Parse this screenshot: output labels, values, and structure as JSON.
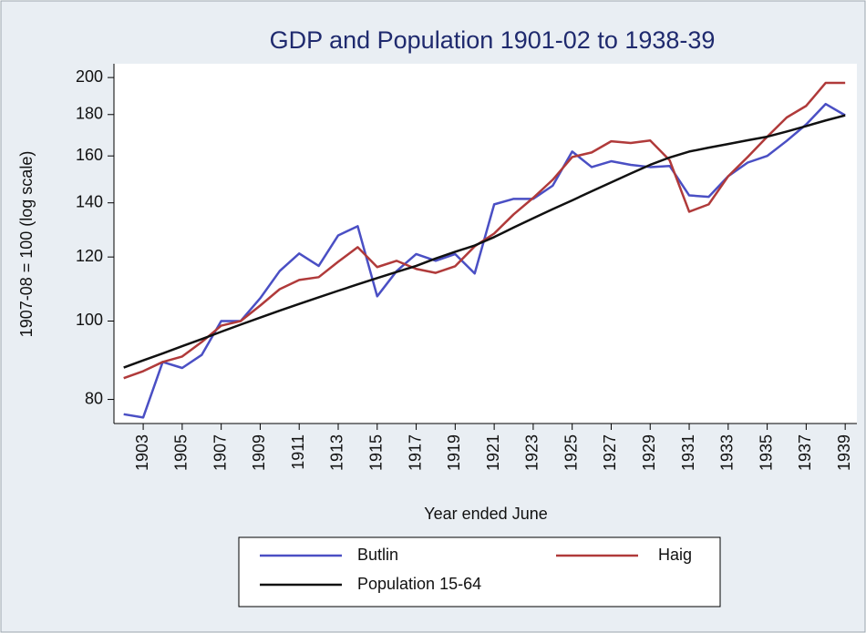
{
  "chart_data": {
    "type": "line",
    "title": "GDP and Population 1901-02 to 1938-39",
    "xlabel": "Year ended June",
    "ylabel": "1907-08 = 100 (log scale)",
    "log_y": true,
    "grid": false,
    "x": [
      1902,
      1903,
      1904,
      1905,
      1906,
      1907,
      1908,
      1909,
      1910,
      1911,
      1912,
      1913,
      1914,
      1915,
      1916,
      1917,
      1918,
      1919,
      1920,
      1921,
      1922,
      1923,
      1924,
      1925,
      1926,
      1927,
      1928,
      1929,
      1930,
      1931,
      1932,
      1933,
      1934,
      1935,
      1936,
      1937,
      1938,
      1939
    ],
    "xlim": [
      1901.5,
      1939.6
    ],
    "xticks": [
      1903,
      1905,
      1907,
      1909,
      1911,
      1913,
      1915,
      1917,
      1919,
      1921,
      1923,
      1925,
      1927,
      1929,
      1931,
      1933,
      1935,
      1937,
      1939
    ],
    "ylim": [
      74.7,
      208
    ],
    "yticks": [
      80,
      100,
      120,
      140,
      160,
      180,
      200
    ],
    "legend": "bottom",
    "series": [
      {
        "name": "Butlin",
        "color": "#4a4fc4",
        "values": [
          76.7,
          76,
          89,
          87.5,
          90.8,
          100,
          100,
          106.7,
          115.3,
          121.2,
          117,
          127.6,
          131,
          107.3,
          115.3,
          121,
          118.7,
          121,
          114.5,
          139.4,
          141.6,
          141.6,
          147,
          162,
          155,
          157.6,
          156,
          155,
          155.5,
          143,
          142.4,
          151,
          157,
          160,
          167,
          175,
          185.5,
          179.6
        ]
      },
      {
        "name": "Haig",
        "color": "#b03a3a",
        "values": [
          85,
          86.7,
          89,
          90.4,
          94.2,
          98.7,
          100,
          104.5,
          109.5,
          112.4,
          113.3,
          118.4,
          123.4,
          116.6,
          118.7,
          116,
          114.7,
          116.9,
          123.7,
          128.3,
          135.5,
          142,
          149.5,
          159.5,
          161.6,
          166.8,
          166,
          167.2,
          158,
          136.5,
          139.4,
          151,
          159.5,
          169,
          178.5,
          184.5,
          197,
          197
        ]
      },
      {
        "name": "Population 15-64",
        "color": "#111111",
        "values": [
          87.6,
          89.4,
          91.2,
          93.1,
          95,
          97,
          99,
          101,
          103,
          105,
          107,
          109,
          111,
          113,
          115,
          117,
          119.5,
          121.8,
          124,
          127,
          130.5,
          134,
          137.5,
          141,
          144.7,
          148.4,
          152.2,
          156,
          159.3,
          162,
          163.8,
          165.5,
          167.3,
          169,
          171.5,
          174.2,
          177,
          179.6
        ]
      }
    ]
  }
}
